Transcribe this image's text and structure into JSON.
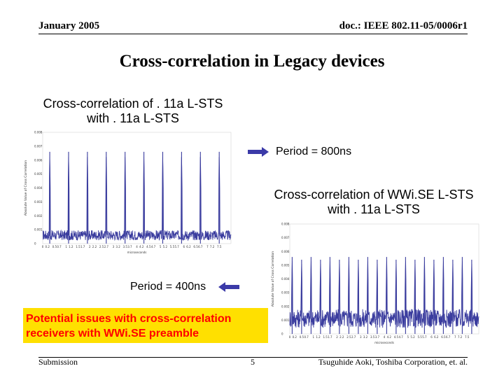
{
  "header": {
    "date": "January 2005",
    "doc_id": "doc.: IEEE 802.11-05/0006r1"
  },
  "slide": {
    "title": "Cross-correlation in Legacy devices",
    "caption1_line1": "Cross-correlation of . 11a L-STS",
    "caption1_line2": "with . 11a L-STS",
    "caption2_line1": "Cross-correlation of WWi.SE L-STS",
    "caption2_line2": "with . 11a L-STS",
    "period1_label": "Period = 800ns",
    "period2_label": "Period = 400ns",
    "issue_line1": "Potential issues with cross-correlation",
    "issue_line2": "receivers with WWi.SE preamble"
  },
  "footer": {
    "left": "Submission",
    "page": "5",
    "right": "Tsuguhide Aoki, Toshiba Corporation, et. al."
  },
  "colors": {
    "series": "#3a3c9e",
    "arrow": "#3b3aa8",
    "issue_bg": "#ffe000",
    "issue_text": "#ff0000"
  },
  "chart_data": [
    {
      "type": "line",
      "title": "",
      "xlabel": "microseconds",
      "ylabel": "Absolute Value of Cross Correlation",
      "xlim": [
        0,
        8
      ],
      "ylim": [
        0,
        0.008
      ],
      "x_ticks": [
        "0",
        "0.2",
        "0.5",
        "0.7",
        "1",
        "1.2",
        "1.5",
        "1.7",
        "2",
        "2.2",
        "2.5",
        "2.7",
        "3",
        "3.2",
        "3.5",
        "3.7",
        "4",
        "4.2",
        "4.5",
        "4.7",
        "5",
        "5.2",
        "5.5",
        "5.7",
        "6",
        "6.2",
        "6.5",
        "6.7",
        "7",
        "7.2",
        "7.5"
      ],
      "y_ticks": [
        "0",
        "0.001",
        "0.002",
        "0.003",
        "0.004",
        "0.005",
        "0.006",
        "0.007",
        "0.008"
      ],
      "peak_period_us": 0.8,
      "peak_times_us": [
        0.3,
        1.1,
        1.9,
        2.7,
        3.5,
        4.3,
        5.1,
        5.9,
        6.7,
        7.5
      ],
      "peak_values": [
        0.0066,
        0.0066,
        0.0066,
        0.0066,
        0.0066,
        0.0066,
        0.0066,
        0.0066,
        0.0066,
        0.0066
      ],
      "baseline_level": 0.0008
    },
    {
      "type": "line",
      "title": "",
      "xlabel": "microseconds",
      "ylabel": "Absolute Value of Cross Correlation",
      "xlim": [
        0,
        8
      ],
      "ylim": [
        0,
        0.008
      ],
      "x_ticks": [
        "0",
        "0.2",
        "0.5",
        "0.7",
        "1",
        "1.2",
        "1.5",
        "1.7",
        "2",
        "2.2",
        "2.5",
        "2.7",
        "3",
        "3.2",
        "3.5",
        "3.7",
        "4",
        "4.2",
        "4.5",
        "4.7",
        "5",
        "5.2",
        "5.5",
        "5.7",
        "6",
        "6.2",
        "6.5",
        "6.7",
        "7",
        "7.2",
        "7.5"
      ],
      "y_ticks": [
        "0",
        "0.001",
        "0.002",
        "0.003",
        "0.004",
        "0.005",
        "0.006",
        "0.007",
        "0.008"
      ],
      "peak_period_us": 0.4,
      "peak_times_us": [
        0.1,
        0.5,
        0.9,
        1.3,
        1.7,
        2.1,
        2.5,
        2.9,
        3.3,
        3.7,
        4.1,
        4.5,
        4.9,
        5.3,
        5.7,
        6.1,
        6.5,
        6.9,
        7.3,
        7.7
      ],
      "peak_values": [
        0.0056,
        0.0054,
        0.0056,
        0.0054,
        0.0056,
        0.0054,
        0.0056,
        0.0054,
        0.0056,
        0.0054,
        0.0056,
        0.0054,
        0.0056,
        0.0054,
        0.0056,
        0.0054,
        0.0056,
        0.0054,
        0.0056,
        0.0054
      ],
      "baseline_level": 0.0015
    }
  ]
}
